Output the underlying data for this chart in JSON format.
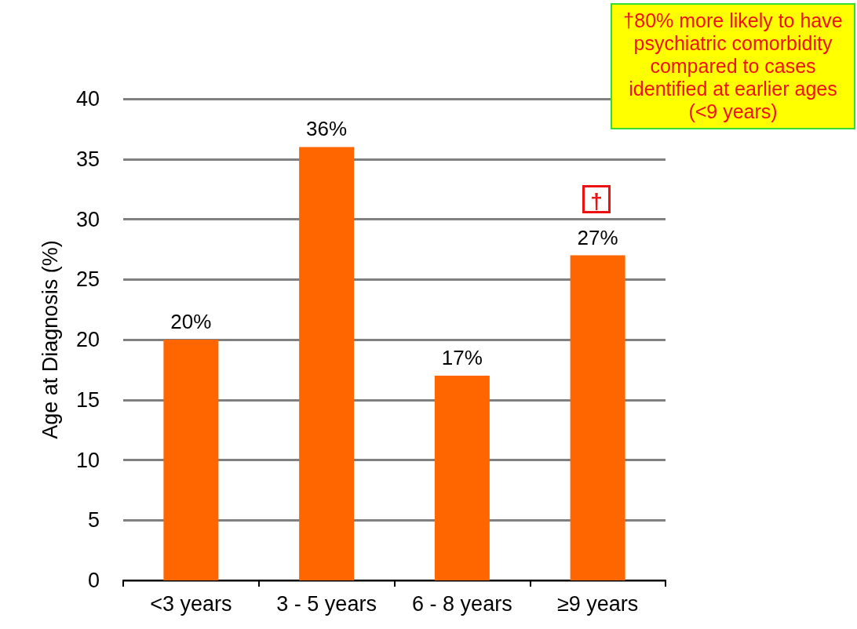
{
  "chart_data": {
    "type": "bar",
    "ylabel": "Age at Diagnosis (%)",
    "categories": [
      "<3 years",
      "3 - 5 years",
      "6 - 8 years",
      "≥9 years"
    ],
    "values": [
      20,
      36,
      17,
      27
    ],
    "color": "#ff6600",
    "value_labels": [
      "20%",
      "36%",
      "17%",
      "27%"
    ],
    "ylim": [
      0,
      40
    ],
    "yticks": [
      0,
      5,
      10,
      15,
      20,
      25,
      30,
      35,
      40
    ],
    "grid": "y",
    "annotations": [
      "†",
      "†80% more likely to have psychiatric comorbidity compared to cases identified at earlier ages (<9 years)"
    ]
  }
}
